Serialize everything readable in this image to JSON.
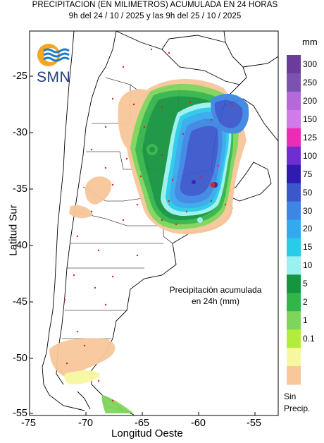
{
  "header": {
    "title_line1": "PRECIPITACION (EN MILIMETROS) ACUMULADA EN 24 HORAS",
    "title_line2": "9h del 24 / 10 / 2025  y las 9h del 25 / 10 / 2025"
  },
  "logo": {
    "text": "SMN",
    "icon": "smn-sun-waves-logo"
  },
  "axes": {
    "ylabel": "Latitud Sur",
    "xlabel": "Longitud Oeste",
    "y_ticks": [
      "-25",
      "-30",
      "-35",
      "-40",
      "-45",
      "-50",
      "-55"
    ],
    "x_ticks": [
      "-75",
      "-70",
      "-65",
      "-60",
      "-55"
    ],
    "lon_range": [
      -75,
      -53
    ],
    "lat_range": [
      -21.5,
      -55.3
    ]
  },
  "annotation": {
    "line1": "Precipitación acumulada",
    "line2": "en 24h (mm)"
  },
  "legend": {
    "unit": "mm",
    "no_precip_label_1": "Sin",
    "no_precip_label_2": "Precip.",
    "bins": [
      {
        "label": "300",
        "color": "#6a3d9a"
      },
      {
        "label": "250",
        "color": "#7b52ae"
      },
      {
        "label": "200",
        "color": "#b36ad8"
      },
      {
        "label": "150",
        "color": "#d07be8"
      },
      {
        "label": "125",
        "color": "#ec2cb5"
      },
      {
        "label": "100",
        "color": "#6f2fd0"
      },
      {
        "label": "75",
        "color": "#2f1bb0"
      },
      {
        "label": "50",
        "color": "#3b57cc"
      },
      {
        "label": "30",
        "color": "#3d86e3"
      },
      {
        "label": "20",
        "color": "#35a9ee"
      },
      {
        "label": "15",
        "color": "#29cbe9"
      },
      {
        "label": "10",
        "color": "#9bf1ef"
      },
      {
        "label": "5",
        "color": "#169440"
      },
      {
        "label": "2",
        "color": "#33b54a"
      },
      {
        "label": "1",
        "color": "#7fd45b"
      },
      {
        "label": "0.1",
        "color": "#b4ec3c"
      },
      {
        "label": "",
        "color": "#f7f7a1"
      },
      {
        "label": "",
        "color": "#f8c79a"
      }
    ]
  },
  "colors": {
    "land": "#ffffff",
    "sea": "#ffffff",
    "station": "#e0201b"
  }
}
